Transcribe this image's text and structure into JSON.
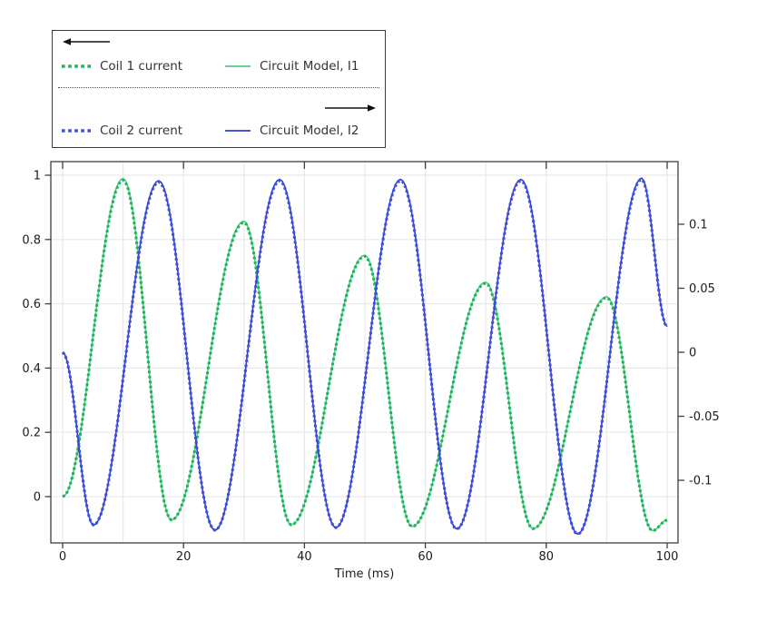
{
  "colors": {
    "green_dotted": "#1db45a",
    "green_solid": "#57c78c",
    "blue_dotted": "#3f4fe0",
    "blue_solid": "#2e3ec9",
    "grid": "#e9e9e9",
    "frame": "#3f3f3f",
    "text": "#1c1c1c",
    "legend_border": "#3b3b3b",
    "arrow": "#111111"
  },
  "legend": {
    "entries": [
      {
        "label": "Coil 1 current",
        "style": "dotted",
        "color": "#1db45a"
      },
      {
        "label": "Circuit Model, I1",
        "style": "solid",
        "color": "#57c78c"
      },
      {
        "label": "Coil 2 current",
        "style": "dotted",
        "color": "#3f4fe0"
      },
      {
        "label": "Circuit Model, I2",
        "style": "solid",
        "color": "#2e3ec9"
      }
    ],
    "left_axis_arrow": "points-left",
    "right_axis_arrow": "points-right"
  },
  "chart_data": {
    "type": "line",
    "title": "",
    "xlabel": "Time (ms)",
    "grid": true,
    "legend_position": "outside-top-left",
    "interpolation": "cosine-between-extrema",
    "xlim": [
      -1.95,
      101.8
    ],
    "x_gridlines": [
      0,
      10,
      20,
      30,
      40,
      50,
      60,
      70,
      80,
      90,
      100
    ],
    "x_ticks": [
      {
        "v": 0,
        "label": "0"
      },
      {
        "v": 20,
        "label": "20"
      },
      {
        "v": 40,
        "label": "40"
      },
      {
        "v": 60,
        "label": "60"
      },
      {
        "v": 80,
        "label": "80"
      },
      {
        "v": 100,
        "label": "100"
      }
    ],
    "left_axis": {
      "lim": [
        -0.1441,
        1.0424
      ],
      "ticks": [
        {
          "v": 0,
          "label": "0"
        },
        {
          "v": 0.2,
          "label": "0.2"
        },
        {
          "v": 0.4,
          "label": "0.4"
        },
        {
          "v": 0.6,
          "label": "0.6"
        },
        {
          "v": 0.8,
          "label": "0.8"
        },
        {
          "v": 1,
          "label": "1"
        }
      ]
    },
    "right_axis": {
      "lim": [
        -0.1489,
        0.1489
      ],
      "ticks": [
        {
          "v": 0.1,
          "label": "0.1"
        },
        {
          "v": 0.05,
          "label": "0.05"
        },
        {
          "v": 0,
          "label": "0"
        },
        {
          "v": -0.05,
          "label": "-0.05"
        },
        {
          "v": -0.1,
          "label": "-0.1"
        }
      ]
    },
    "series": [
      {
        "name": "Circuit Model, I1",
        "axis": "left",
        "style": "solid",
        "color": "#57c78c",
        "keypoints": [
          [
            0,
            0
          ],
          [
            10,
            0.99
          ],
          [
            18,
            -0.073
          ],
          [
            30,
            0.857
          ],
          [
            37.8,
            -0.088
          ],
          [
            50,
            0.751
          ],
          [
            57.8,
            -0.093
          ],
          [
            70,
            0.667
          ],
          [
            77.8,
            -0.1
          ],
          [
            90,
            0.622
          ],
          [
            97.6,
            -0.106
          ],
          [
            100,
            -0.073
          ]
        ]
      },
      {
        "name": "Coil 1 current",
        "axis": "left",
        "style": "dotted",
        "color": "#1db45a",
        "keypoints": [
          [
            0,
            0
          ],
          [
            10,
            0.985
          ],
          [
            18,
            -0.073
          ],
          [
            30,
            0.853
          ],
          [
            37.8,
            -0.088
          ],
          [
            50,
            0.748
          ],
          [
            57.8,
            -0.093
          ],
          [
            70,
            0.664
          ],
          [
            77.8,
            -0.1
          ],
          [
            90,
            0.619
          ],
          [
            97.6,
            -0.106
          ],
          [
            100,
            -0.073
          ]
        ]
      },
      {
        "name": "Circuit Model, I2",
        "axis": "right",
        "style": "solid",
        "color": "#2e3ec9",
        "keypoints": [
          [
            0,
            0
          ],
          [
            5.1,
            -0.135
          ],
          [
            15.9,
            0.134
          ],
          [
            25.2,
            -0.139
          ],
          [
            35.9,
            0.135
          ],
          [
            45.2,
            -0.137
          ],
          [
            55.9,
            0.135
          ],
          [
            65.2,
            -0.138
          ],
          [
            75.8,
            0.135
          ],
          [
            85.2,
            -0.142
          ],
          [
            95.8,
            0.136
          ],
          [
            100,
            0.02
          ]
        ]
      },
      {
        "name": "Coil 2 current",
        "axis": "right",
        "style": "dotted",
        "color": "#3f4fe0",
        "keypoints": [
          [
            0,
            0
          ],
          [
            5.1,
            -0.135
          ],
          [
            15.9,
            0.133
          ],
          [
            25.2,
            -0.139
          ],
          [
            35.9,
            0.134
          ],
          [
            45.2,
            -0.137
          ],
          [
            55.9,
            0.134
          ],
          [
            65.2,
            -0.138
          ],
          [
            75.8,
            0.134
          ],
          [
            85.2,
            -0.142
          ],
          [
            95.8,
            0.135
          ],
          [
            100,
            0.02
          ]
        ]
      }
    ]
  }
}
